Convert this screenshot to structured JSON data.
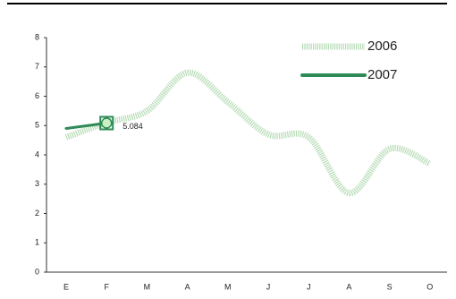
{
  "chart_data": {
    "type": "line",
    "categories": [
      "E",
      "F",
      "M",
      "A",
      "M",
      "J",
      "J",
      "A",
      "S",
      "O"
    ],
    "series": [
      {
        "name": "2006",
        "color": "#b5dbb5",
        "values": [
          4.6,
          5.1,
          5.5,
          6.8,
          5.8,
          4.7,
          4.6,
          2.7,
          4.2,
          3.7
        ]
      },
      {
        "name": "2007",
        "color": "#2e8b57",
        "values": [
          4.9,
          5.084,
          null,
          null,
          null,
          null,
          null,
          null,
          null,
          null
        ]
      }
    ],
    "ylim": [
      0,
      8
    ],
    "yticks": [
      0,
      1,
      2,
      3,
      4,
      5,
      6,
      7,
      8
    ],
    "legend": "top-right"
  }
}
